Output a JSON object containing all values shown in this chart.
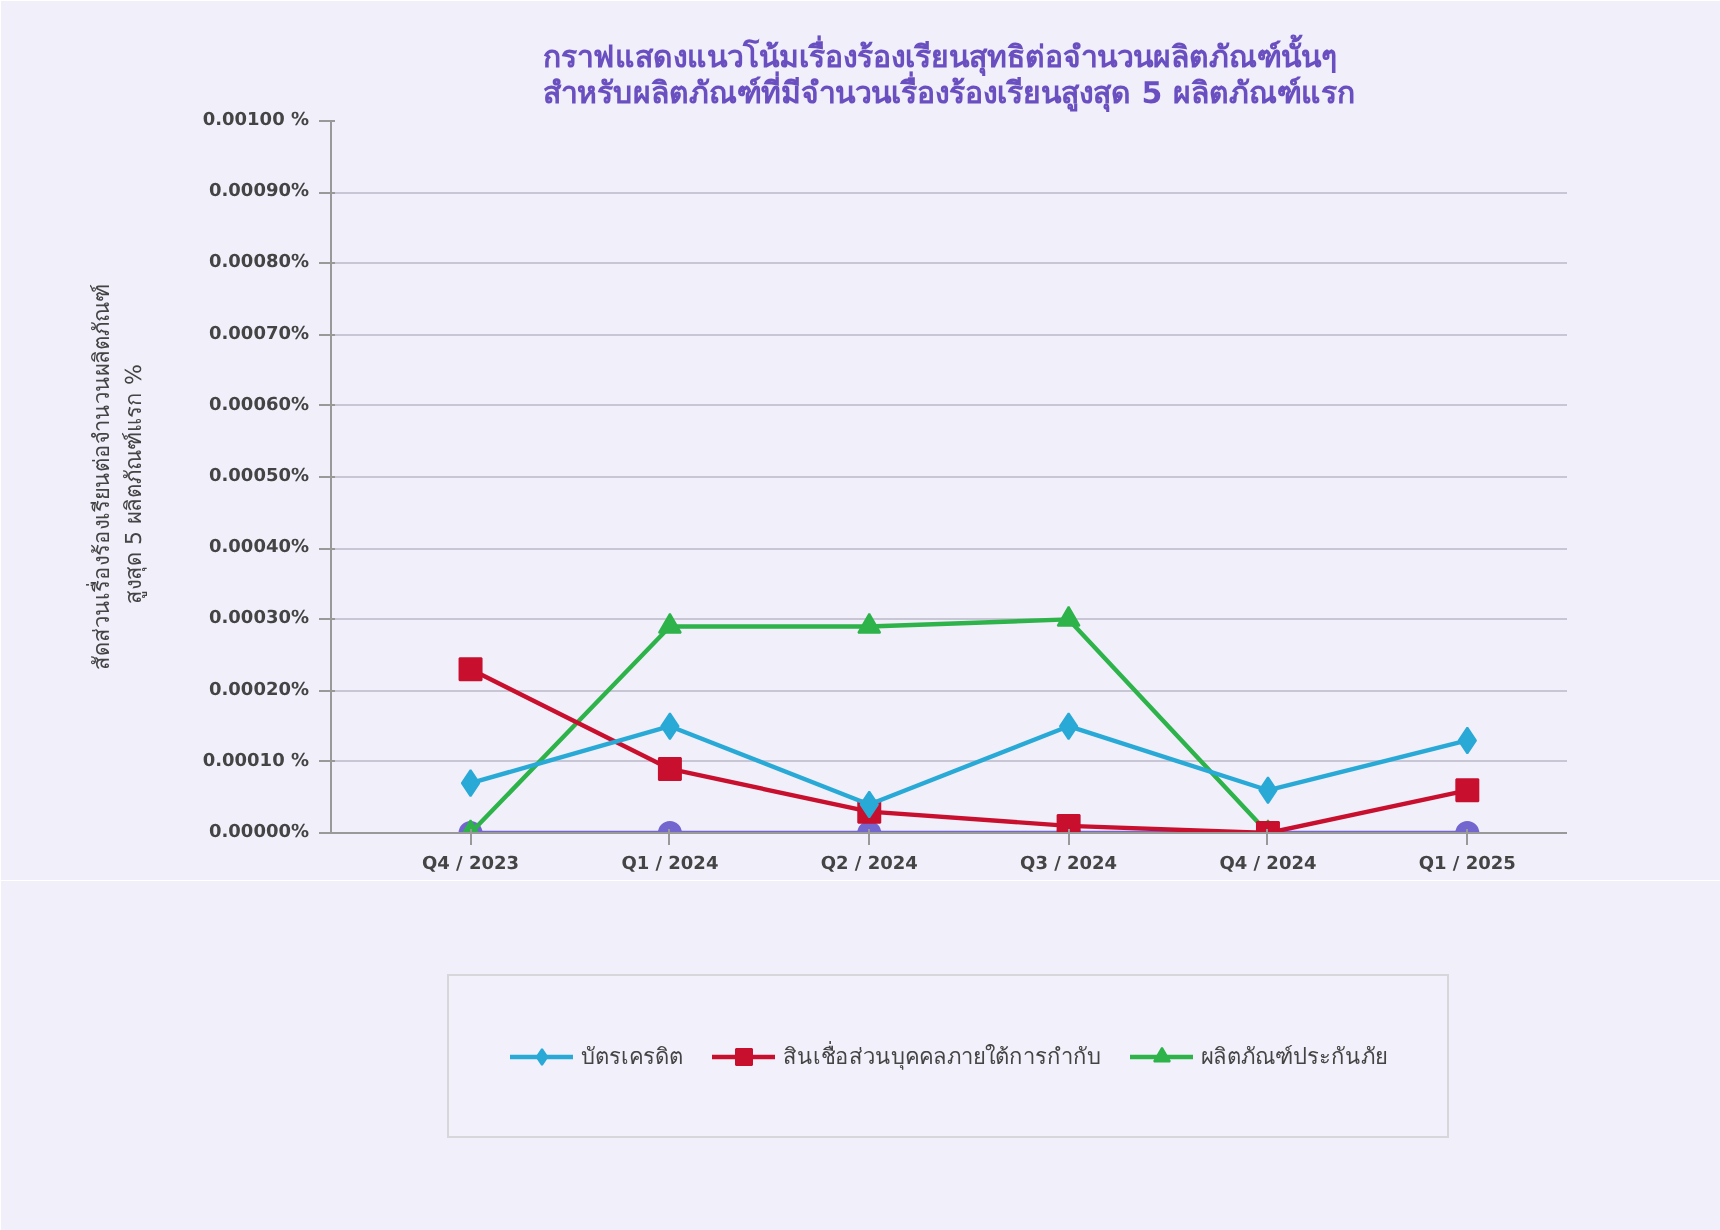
{
  "chart_data": {
    "type": "line",
    "title": "กราฟแสดงแนวโน้มเรื่องร้องเรียนสุทธิต่อจำนวนผลิตภัณฑ์นั้นๆ\nสำหรับผลิตภัณฑ์ที่มีจำนวนเรื่องร้องเรียนสูงสุด 5 ผลิตภัณฑ์แรก",
    "ylabel": "สัดส่วนเรื่องร้องเรียนต่อจำนวนผลิตภัณฑ์\nสูงสุด 5 ผลิตภัณฑ์แรก   %",
    "categories": [
      "Q4 / 2023",
      "Q1 / 2024",
      "Q2 / 2024",
      "Q3 / 2024",
      "Q4 / 2024",
      "Q1 / 2025"
    ],
    "series": [
      {
        "name": "บัตรเครดิต",
        "color": "#29a9d6",
        "marker": "diamond",
        "values": [
          7e-05,
          0.00015,
          4e-05,
          0.00015,
          6e-05,
          0.00013
        ]
      },
      {
        "name": "สินเชื่อส่วนบุคคลภายใต้การกำกับ",
        "color": "#c8102e",
        "marker": "square",
        "values": [
          0.00023,
          9e-05,
          3e-05,
          1e-05,
          0.0,
          6e-05
        ]
      },
      {
        "name": "ผลิตภัณฑ์ประกันภัย",
        "color": "#2db34a",
        "marker": "triangle",
        "values": [
          0.0,
          0.00029,
          0.00029,
          0.0003,
          0.0,
          null
        ]
      },
      {
        "color": "#7366cf",
        "marker": "circle",
        "values": [
          0.0,
          0.0,
          0.0,
          0.0,
          0.0,
          0.0
        ]
      }
    ],
    "ylim": [
      0,
      0.001
    ],
    "yticks": [
      {
        "value": 0,
        "label": "0.00000%"
      },
      {
        "value": 0.0001,
        "label": "0.00010 %"
      },
      {
        "value": 0.0002,
        "label": "0.00020%"
      },
      {
        "value": 0.0003,
        "label": "0.00030%"
      },
      {
        "value": 0.0004,
        "label": "0.00040%"
      },
      {
        "value": 0.0005,
        "label": "0.00050%"
      },
      {
        "value": 0.0006,
        "label": "0.00060%"
      },
      {
        "value": 0.0007,
        "label": "0.00070%"
      },
      {
        "value": 0.0008,
        "label": "0.00080%"
      },
      {
        "value": 0.0009,
        "label": "0.00090%"
      },
      {
        "value": 0.001,
        "label": "0.00100 %"
      }
    ],
    "grid": "y",
    "legend": "bottom",
    "line_style": "solid"
  }
}
